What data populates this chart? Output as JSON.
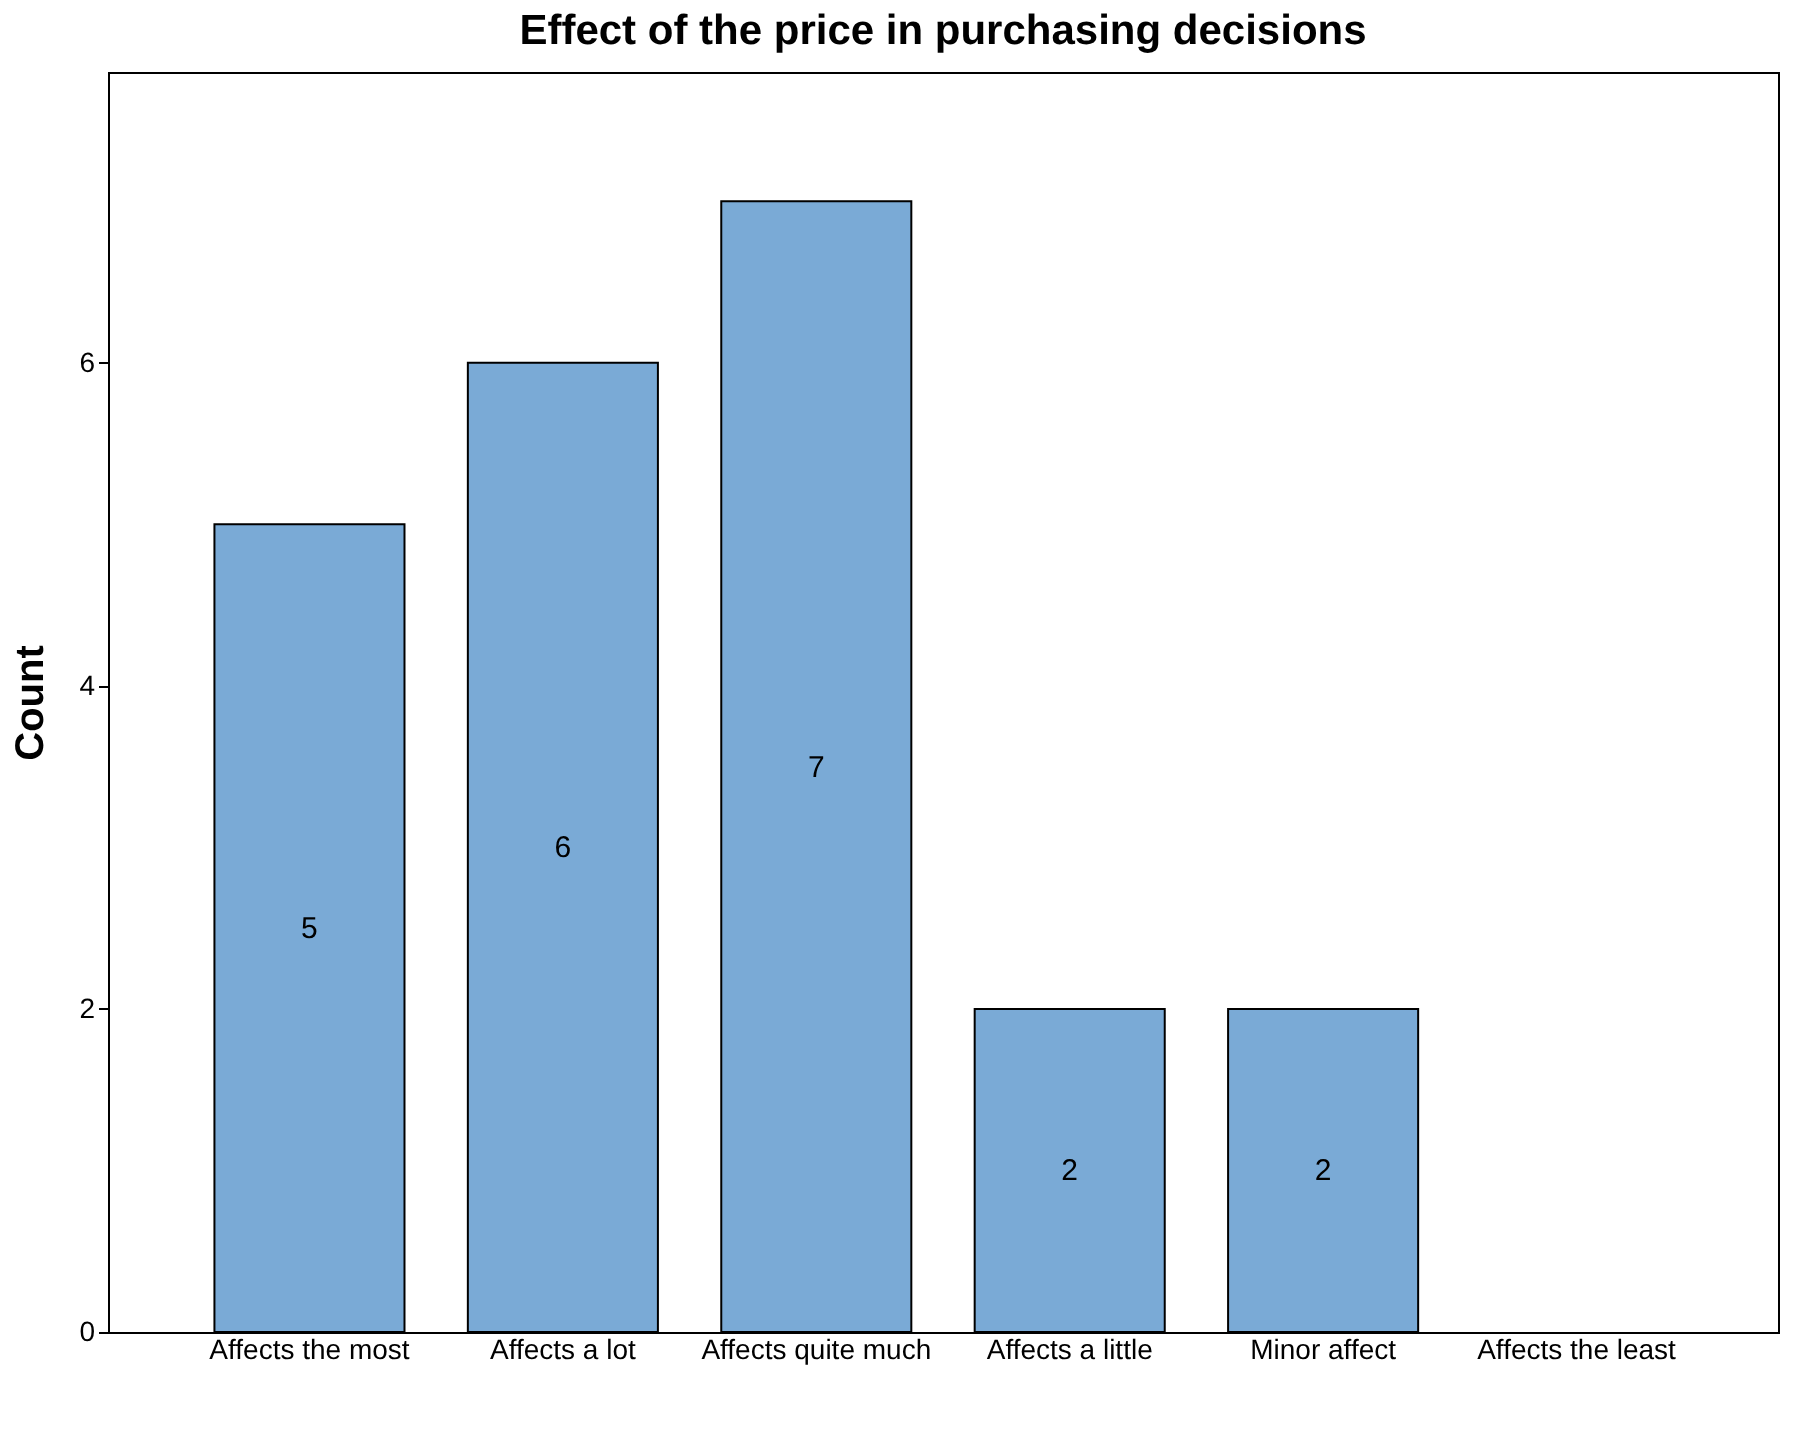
{
  "chart_data": {
    "type": "bar",
    "title": "Effect of the price in purchasing decisions",
    "ylabel": "Count",
    "categories": [
      "Affects the most",
      "Affects a lot",
      "Affects quite much",
      "Affects a little",
      "Minor affect",
      "Affects the least"
    ],
    "values": [
      5,
      6,
      7,
      2,
      2,
      0
    ],
    "value_labels": [
      "5",
      "6",
      "7",
      "2",
      "2",
      null
    ],
    "color": "#7aaad6",
    "ylim": [
      0,
      7.8
    ],
    "yticks": [
      0,
      2,
      4,
      6
    ],
    "grid": false
  }
}
